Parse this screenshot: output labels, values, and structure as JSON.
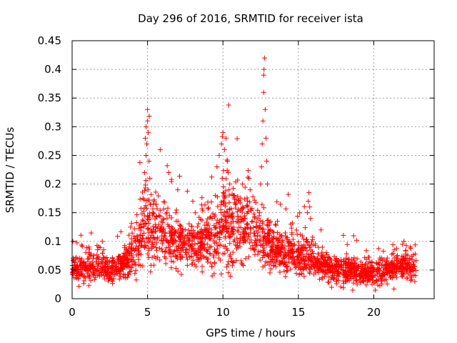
{
  "chart_data": {
    "type": "scatter",
    "title": "Day 296 of 2016, SRMTID for receiver ista",
    "xlabel": "GPS time / hours",
    "ylabel": "SRMTID / TECUs",
    "xlim": [
      0,
      24
    ],
    "ylim": [
      0,
      0.45
    ],
    "xticks": [
      0,
      5,
      10,
      15,
      20
    ],
    "yticks": [
      0,
      0.05,
      0.1,
      0.15,
      0.2,
      0.25,
      0.3,
      0.35,
      0.4,
      0.45
    ],
    "xtick_labels": [
      "0",
      "5",
      "10",
      "15",
      "20"
    ],
    "ytick_labels": [
      "0",
      "0.05",
      "0.1",
      "0.15",
      "0.2",
      "0.25",
      "0.3",
      "0.35",
      "0.4",
      "0.45"
    ],
    "marker": "+",
    "color": "#ff0000",
    "grid": true,
    "envelope": {
      "x": [
        0,
        0.5,
        1,
        1.5,
        2,
        2.5,
        3,
        3.5,
        4,
        4.5,
        5,
        5.5,
        6,
        6.5,
        7,
        7.5,
        8,
        8.5,
        9,
        9.5,
        10,
        10.5,
        11,
        11.5,
        12,
        12.5,
        13,
        13.5,
        14,
        14.5,
        15,
        15.5,
        16,
        16.5,
        17,
        17.5,
        18,
        18.5,
        19,
        19.5,
        20,
        20.5,
        21,
        21.5,
        22,
        22.5,
        22.8
      ],
      "center": [
        0.055,
        0.05,
        0.055,
        0.055,
        0.06,
        0.05,
        0.055,
        0.06,
        0.075,
        0.12,
        0.13,
        0.12,
        0.12,
        0.1,
        0.1,
        0.09,
        0.09,
        0.1,
        0.11,
        0.11,
        0.14,
        0.12,
        0.13,
        0.12,
        0.12,
        0.11,
        0.1,
        0.09,
        0.08,
        0.085,
        0.075,
        0.075,
        0.065,
        0.06,
        0.055,
        0.05,
        0.05,
        0.05,
        0.045,
        0.045,
        0.045,
        0.05,
        0.05,
        0.055,
        0.06,
        0.055,
        0.05
      ],
      "spread": [
        0.015,
        0.018,
        0.022,
        0.02,
        0.02,
        0.018,
        0.018,
        0.02,
        0.03,
        0.05,
        0.06,
        0.05,
        0.045,
        0.04,
        0.035,
        0.03,
        0.03,
        0.035,
        0.045,
        0.05,
        0.06,
        0.05,
        0.05,
        0.045,
        0.05,
        0.045,
        0.035,
        0.03,
        0.03,
        0.03,
        0.03,
        0.03,
        0.025,
        0.02,
        0.02,
        0.02,
        0.02,
        0.018,
        0.018,
        0.018,
        0.018,
        0.02,
        0.02,
        0.02,
        0.022,
        0.02,
        0.02
      ]
    },
    "peak_points": [
      {
        "x": 4.85,
        "y": 0.28
      },
      {
        "x": 4.9,
        "y": 0.3
      },
      {
        "x": 4.95,
        "y": 0.27
      },
      {
        "x": 5.0,
        "y": 0.33
      },
      {
        "x": 5.0,
        "y": 0.31
      },
      {
        "x": 4.9,
        "y": 0.25
      },
      {
        "x": 5.05,
        "y": 0.29
      },
      {
        "x": 5.1,
        "y": 0.24
      },
      {
        "x": 4.8,
        "y": 0.22
      },
      {
        "x": 5.15,
        "y": 0.21
      },
      {
        "x": 9.6,
        "y": 0.23
      },
      {
        "x": 9.75,
        "y": 0.25
      },
      {
        "x": 9.9,
        "y": 0.27
      },
      {
        "x": 10.0,
        "y": 0.29
      },
      {
        "x": 10.1,
        "y": 0.26
      },
      {
        "x": 10.2,
        "y": 0.28
      },
      {
        "x": 10.3,
        "y": 0.24
      },
      {
        "x": 10.35,
        "y": 0.22
      },
      {
        "x": 10.45,
        "y": 0.2
      },
      {
        "x": 9.95,
        "y": 0.21
      },
      {
        "x": 12.5,
        "y": 0.2
      },
      {
        "x": 12.55,
        "y": 0.23
      },
      {
        "x": 12.6,
        "y": 0.27
      },
      {
        "x": 12.65,
        "y": 0.31
      },
      {
        "x": 12.7,
        "y": 0.36
      },
      {
        "x": 12.7,
        "y": 0.39
      },
      {
        "x": 12.75,
        "y": 0.42
      },
      {
        "x": 12.72,
        "y": 0.4
      },
      {
        "x": 12.8,
        "y": 0.33
      },
      {
        "x": 12.85,
        "y": 0.28
      },
      {
        "x": 12.9,
        "y": 0.24
      },
      {
        "x": 12.95,
        "y": 0.2
      },
      {
        "x": 15.6,
        "y": 0.15
      },
      {
        "x": 15.65,
        "y": 0.17
      },
      {
        "x": 15.7,
        "y": 0.185
      },
      {
        "x": 15.75,
        "y": 0.16
      },
      {
        "x": 15.8,
        "y": 0.14
      },
      {
        "x": 8.0,
        "y": 0.17
      },
      {
        "x": 6.4,
        "y": 0.22
      },
      {
        "x": 7.0,
        "y": 0.19
      },
      {
        "x": 11.3,
        "y": 0.2
      },
      {
        "x": 11.8,
        "y": 0.19
      },
      {
        "x": 0.05,
        "y": 0.1
      },
      {
        "x": 1.1,
        "y": 0.09
      },
      {
        "x": 2.0,
        "y": 0.1
      },
      {
        "x": 14.5,
        "y": 0.13
      },
      {
        "x": 16.5,
        "y": 0.12
      },
      {
        "x": 22.0,
        "y": 0.1
      },
      {
        "x": 21.9,
        "y": 0.095
      },
      {
        "x": 17.2,
        "y": 0.02
      },
      {
        "x": 18.6,
        "y": 0.015
      },
      {
        "x": 20.1,
        "y": 0.015
      }
    ],
    "n_points": 2300
  }
}
